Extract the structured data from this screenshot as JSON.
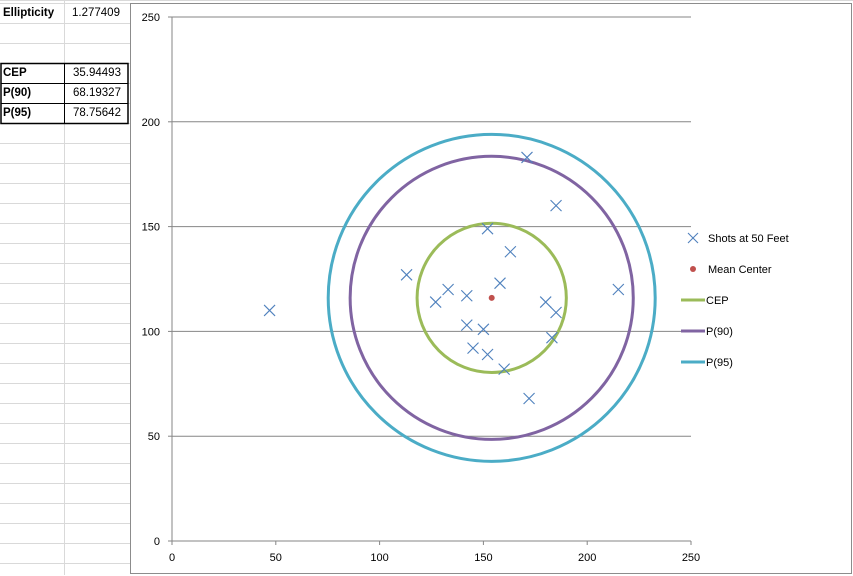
{
  "stats": {
    "ellipticity_label": "Ellipticity",
    "ellipticity_value": "1.277409",
    "rows": [
      {
        "label": "CEP",
        "value": "35.94493"
      },
      {
        "label": "P(90)",
        "value": "68.19327"
      },
      {
        "label": "P(95)",
        "value": "78.75642"
      }
    ]
  },
  "chart_data": {
    "type": "scatter",
    "title": "",
    "xlabel": "",
    "ylabel": "",
    "xlim": [
      0,
      250
    ],
    "ylim": [
      0,
      250
    ],
    "x_ticks": [
      0,
      50,
      100,
      150,
      200,
      250
    ],
    "y_ticks": [
      0,
      50,
      100,
      150,
      200,
      250
    ],
    "horizontal_gridlines": true,
    "legend_position": "right",
    "series": [
      {
        "name": "Shots at 50 Feet",
        "marker": "x",
        "color": "#4f81bd",
        "points": [
          [
            47,
            110
          ],
          [
            113,
            127
          ],
          [
            127,
            114
          ],
          [
            133,
            120
          ],
          [
            142,
            117
          ],
          [
            142,
            103
          ],
          [
            145,
            92
          ],
          [
            150,
            101
          ],
          [
            152,
            149
          ],
          [
            152,
            89
          ],
          [
            158,
            123
          ],
          [
            160,
            82
          ],
          [
            163,
            138
          ],
          [
            171,
            183
          ],
          [
            172,
            68
          ],
          [
            180,
            114
          ],
          [
            183,
            97
          ],
          [
            185,
            160
          ],
          [
            185,
            109
          ],
          [
            215,
            120
          ]
        ]
      },
      {
        "name": "Mean Center",
        "marker": "dot",
        "color": "#c0504d",
        "points": [
          [
            154,
            116
          ]
        ]
      },
      {
        "name": "CEP",
        "type": "circle",
        "color": "#9bbb59",
        "center": [
          154,
          116
        ],
        "radius": 35.94493
      },
      {
        "name": "P(90)",
        "type": "circle",
        "color": "#8064a2",
        "center": [
          154,
          116
        ],
        "radius": 68.19327
      },
      {
        "name": "P(95)",
        "type": "circle",
        "color": "#4bacc6",
        "center": [
          154,
          116
        ],
        "radius": 78.75642
      }
    ]
  }
}
